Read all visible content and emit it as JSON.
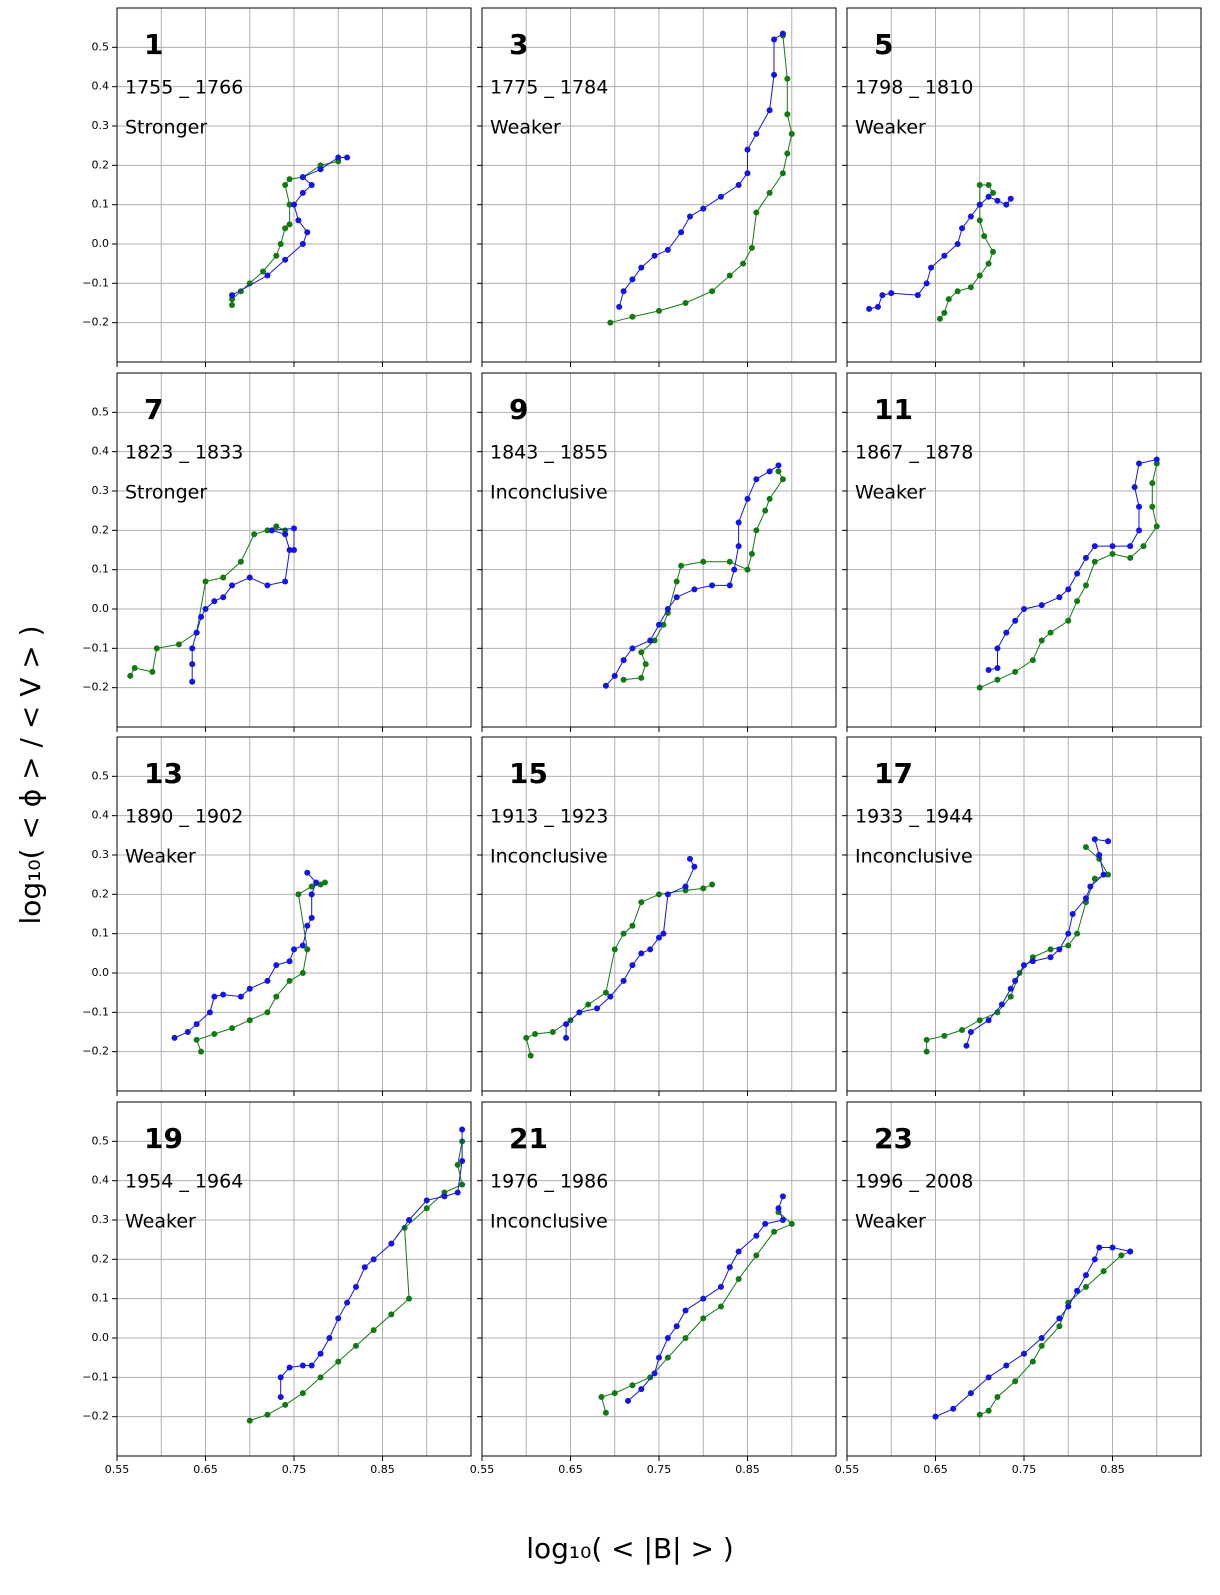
{
  "axes": {
    "xlabel": "log₁₀( < |B| > )",
    "ylabel": "log₁₀( < ϕ > / < V > )",
    "xlim": [
      0.55,
      0.95
    ],
    "ylim": [
      -0.3,
      0.6
    ],
    "xticks": [
      0.55,
      0.65,
      0.75,
      0.85
    ],
    "xgrid": [
      0.6,
      0.7,
      0.8,
      0.9
    ],
    "yticks": [
      {
        "value": -0.2,
        "label": "−0.2"
      },
      {
        "value": -0.1,
        "label": "−0.1"
      },
      {
        "value": 0,
        "label": "0.0"
      },
      0.1,
      0.2,
      0.3,
      0.4,
      0.5
    ],
    "grid": true
  },
  "chart_data": [
    {
      "type": "scatter",
      "title": "1",
      "subtitle": "1755 _ 1766",
      "annotation": "Stronger",
      "series": [
        {
          "color": "#137a13",
          "x": [
            0.68,
            0.68,
            0.69,
            0.7,
            0.715,
            0.73,
            0.735,
            0.74,
            0.745,
            0.745,
            0.74,
            0.745,
            0.76,
            0.78,
            0.8
          ],
          "y": [
            -0.155,
            -0.14,
            -0.12,
            -0.1,
            -0.07,
            -0.03,
            0.0,
            0.04,
            0.05,
            0.1,
            0.15,
            0.165,
            0.17,
            0.2,
            0.21
          ]
        },
        {
          "color": "#1414e6",
          "x": [
            0.68,
            0.72,
            0.74,
            0.76,
            0.765,
            0.755,
            0.75,
            0.76,
            0.77,
            0.76,
            0.78,
            0.8,
            0.81
          ],
          "y": [
            -0.13,
            -0.08,
            -0.04,
            0.0,
            0.03,
            0.06,
            0.1,
            0.13,
            0.15,
            0.17,
            0.19,
            0.22,
            0.22
          ]
        }
      ]
    },
    {
      "type": "scatter",
      "title": "3",
      "subtitle": "1775 _ 1784",
      "annotation": "Weaker",
      "series": [
        {
          "color": "#137a13",
          "x": [
            0.695,
            0.72,
            0.75,
            0.78,
            0.81,
            0.83,
            0.845,
            0.855,
            0.86,
            0.875,
            0.89,
            0.895,
            0.9,
            0.895,
            0.895,
            0.89
          ],
          "y": [
            -0.2,
            -0.185,
            -0.17,
            -0.15,
            -0.12,
            -0.08,
            -0.05,
            -0.01,
            0.08,
            0.13,
            0.18,
            0.23,
            0.28,
            0.33,
            0.42,
            0.53
          ]
        },
        {
          "color": "#1414e6",
          "x": [
            0.705,
            0.71,
            0.72,
            0.73,
            0.745,
            0.76,
            0.775,
            0.785,
            0.8,
            0.82,
            0.84,
            0.85,
            0.85,
            0.86,
            0.875,
            0.88,
            0.88,
            0.89
          ],
          "y": [
            -0.16,
            -0.12,
            -0.09,
            -0.06,
            -0.03,
            -0.015,
            0.03,
            0.07,
            0.09,
            0.12,
            0.15,
            0.18,
            0.24,
            0.28,
            0.34,
            0.43,
            0.52,
            0.535
          ]
        }
      ]
    },
    {
      "type": "scatter",
      "title": "5",
      "subtitle": "1798 _ 1810",
      "annotation": "Weaker",
      "series": [
        {
          "color": "#137a13",
          "x": [
            0.655,
            0.66,
            0.665,
            0.675,
            0.69,
            0.7,
            0.71,
            0.715,
            0.705,
            0.7,
            0.7,
            0.7,
            0.71,
            0.715
          ],
          "y": [
            -0.19,
            -0.175,
            -0.14,
            -0.12,
            -0.11,
            -0.08,
            -0.05,
            -0.02,
            0.02,
            0.06,
            0.1,
            0.15,
            0.15,
            0.13
          ]
        },
        {
          "color": "#1414e6",
          "x": [
            0.575,
            0.585,
            0.59,
            0.6,
            0.63,
            0.64,
            0.645,
            0.66,
            0.675,
            0.68,
            0.69,
            0.7,
            0.71,
            0.72,
            0.73,
            0.735
          ],
          "y": [
            -0.165,
            -0.16,
            -0.13,
            -0.125,
            -0.13,
            -0.1,
            -0.06,
            -0.03,
            0.0,
            0.04,
            0.07,
            0.1,
            0.12,
            0.11,
            0.1,
            0.115
          ]
        }
      ]
    },
    {
      "type": "scatter",
      "title": "7",
      "subtitle": "1823 _ 1833",
      "annotation": "Stronger",
      "series": [
        {
          "color": "#137a13",
          "x": [
            0.565,
            0.57,
            0.59,
            0.595,
            0.62,
            0.64,
            0.65,
            0.67,
            0.69,
            0.705,
            0.72,
            0.73,
            0.74
          ],
          "y": [
            -0.17,
            -0.15,
            -0.16,
            -0.1,
            -0.09,
            -0.06,
            0.07,
            0.08,
            0.12,
            0.19,
            0.2,
            0.21,
            0.2
          ]
        },
        {
          "color": "#1414e6",
          "x": [
            0.635,
            0.635,
            0.635,
            0.64,
            0.645,
            0.65,
            0.66,
            0.67,
            0.68,
            0.7,
            0.72,
            0.74,
            0.745,
            0.74,
            0.725,
            0.75,
            0.75
          ],
          "y": [
            -0.185,
            -0.14,
            -0.1,
            -0.06,
            -0.02,
            0.0,
            0.02,
            0.03,
            0.06,
            0.08,
            0.06,
            0.07,
            0.15,
            0.19,
            0.2,
            0.205,
            0.15
          ]
        }
      ]
    },
    {
      "type": "scatter",
      "title": "9",
      "subtitle": "1843 _ 1855",
      "annotation": "Inconclusive",
      "series": [
        {
          "color": "#137a13",
          "x": [
            0.71,
            0.73,
            0.735,
            0.73,
            0.745,
            0.755,
            0.76,
            0.77,
            0.775,
            0.8,
            0.83,
            0.85,
            0.855,
            0.86,
            0.87,
            0.875,
            0.89,
            0.885
          ],
          "y": [
            -0.18,
            -0.175,
            -0.14,
            -0.11,
            -0.08,
            -0.04,
            -0.01,
            0.07,
            0.11,
            0.12,
            0.12,
            0.1,
            0.14,
            0.2,
            0.25,
            0.28,
            0.33,
            0.35
          ]
        },
        {
          "color": "#1414e6",
          "x": [
            0.69,
            0.7,
            0.71,
            0.72,
            0.74,
            0.75,
            0.76,
            0.77,
            0.79,
            0.81,
            0.83,
            0.835,
            0.84,
            0.84,
            0.85,
            0.86,
            0.875,
            0.885
          ],
          "y": [
            -0.195,
            -0.17,
            -0.13,
            -0.1,
            -0.08,
            -0.04,
            0.0,
            0.03,
            0.05,
            0.06,
            0.06,
            0.1,
            0.16,
            0.22,
            0.28,
            0.33,
            0.35,
            0.365
          ]
        }
      ]
    },
    {
      "type": "scatter",
      "title": "11",
      "subtitle": "1867 _ 1878",
      "annotation": "Weaker",
      "series": [
        {
          "color": "#137a13",
          "x": [
            0.7,
            0.72,
            0.74,
            0.76,
            0.77,
            0.78,
            0.8,
            0.81,
            0.82,
            0.83,
            0.85,
            0.87,
            0.885,
            0.9,
            0.895,
            0.895,
            0.9
          ],
          "y": [
            -0.2,
            -0.18,
            -0.16,
            -0.13,
            -0.08,
            -0.06,
            -0.03,
            0.02,
            0.06,
            0.12,
            0.14,
            0.13,
            0.16,
            0.21,
            0.26,
            0.32,
            0.37
          ]
        },
        {
          "color": "#1414e6",
          "x": [
            0.71,
            0.72,
            0.72,
            0.73,
            0.74,
            0.75,
            0.77,
            0.79,
            0.8,
            0.81,
            0.82,
            0.83,
            0.85,
            0.87,
            0.88,
            0.88,
            0.875,
            0.88,
            0.9
          ],
          "y": [
            -0.155,
            -0.15,
            -0.1,
            -0.06,
            -0.03,
            0.0,
            0.01,
            0.03,
            0.05,
            0.09,
            0.13,
            0.16,
            0.16,
            0.16,
            0.2,
            0.26,
            0.31,
            0.37,
            0.38
          ]
        }
      ]
    },
    {
      "type": "scatter",
      "title": "13",
      "subtitle": "1890 _ 1902",
      "annotation": "Weaker",
      "series": [
        {
          "color": "#137a13",
          "x": [
            0.645,
            0.64,
            0.66,
            0.68,
            0.7,
            0.72,
            0.73,
            0.745,
            0.76,
            0.765,
            0.755,
            0.77,
            0.78,
            0.785
          ],
          "y": [
            -0.2,
            -0.17,
            -0.155,
            -0.14,
            -0.12,
            -0.1,
            -0.06,
            -0.02,
            0.0,
            0.06,
            0.2,
            0.22,
            0.225,
            0.23
          ]
        },
        {
          "color": "#1414e6",
          "x": [
            0.615,
            0.63,
            0.64,
            0.655,
            0.66,
            0.67,
            0.69,
            0.7,
            0.72,
            0.73,
            0.745,
            0.75,
            0.76,
            0.765,
            0.77,
            0.77,
            0.775,
            0.765
          ],
          "y": [
            -0.165,
            -0.15,
            -0.13,
            -0.1,
            -0.06,
            -0.055,
            -0.06,
            -0.04,
            -0.02,
            0.02,
            0.03,
            0.06,
            0.07,
            0.12,
            0.14,
            0.2,
            0.23,
            0.255
          ]
        }
      ]
    },
    {
      "type": "scatter",
      "title": "15",
      "subtitle": "1913 _ 1923",
      "annotation": "Inconclusive",
      "series": [
        {
          "color": "#137a13",
          "x": [
            0.605,
            0.6,
            0.61,
            0.63,
            0.65,
            0.67,
            0.69,
            0.7,
            0.71,
            0.72,
            0.73,
            0.75,
            0.78,
            0.8,
            0.81
          ],
          "y": [
            -0.21,
            -0.165,
            -0.155,
            -0.15,
            -0.12,
            -0.08,
            -0.05,
            0.06,
            0.1,
            0.12,
            0.18,
            0.2,
            0.21,
            0.215,
            0.225
          ]
        },
        {
          "color": "#1414e6",
          "x": [
            0.645,
            0.645,
            0.66,
            0.68,
            0.695,
            0.71,
            0.72,
            0.73,
            0.74,
            0.75,
            0.755,
            0.76,
            0.78,
            0.79,
            0.785
          ],
          "y": [
            -0.165,
            -0.13,
            -0.1,
            -0.09,
            -0.06,
            -0.02,
            0.02,
            0.05,
            0.06,
            0.09,
            0.1,
            0.2,
            0.22,
            0.27,
            0.29
          ]
        }
      ]
    },
    {
      "type": "scatter",
      "title": "17",
      "subtitle": "1933 _ 1944",
      "annotation": "Inconclusive",
      "series": [
        {
          "color": "#137a13",
          "x": [
            0.64,
            0.64,
            0.66,
            0.68,
            0.7,
            0.72,
            0.735,
            0.745,
            0.76,
            0.78,
            0.8,
            0.81,
            0.82,
            0.83,
            0.845,
            0.835,
            0.82
          ],
          "y": [
            -0.2,
            -0.17,
            -0.16,
            -0.145,
            -0.12,
            -0.1,
            -0.06,
            0.0,
            0.04,
            0.06,
            0.07,
            0.1,
            0.18,
            0.24,
            0.25,
            0.29,
            0.32
          ]
        },
        {
          "color": "#1414e6",
          "x": [
            0.685,
            0.69,
            0.71,
            0.725,
            0.735,
            0.74,
            0.75,
            0.76,
            0.78,
            0.79,
            0.8,
            0.805,
            0.82,
            0.825,
            0.84,
            0.835,
            0.83,
            0.845
          ],
          "y": [
            -0.185,
            -0.15,
            -0.12,
            -0.08,
            -0.04,
            -0.02,
            0.02,
            0.03,
            0.04,
            0.06,
            0.1,
            0.15,
            0.19,
            0.22,
            0.25,
            0.3,
            0.34,
            0.335
          ]
        }
      ]
    },
    {
      "type": "scatter",
      "title": "19",
      "subtitle": "1954 _ 1964",
      "annotation": "Weaker",
      "series": [
        {
          "color": "#137a13",
          "x": [
            0.7,
            0.72,
            0.74,
            0.76,
            0.78,
            0.8,
            0.82,
            0.84,
            0.86,
            0.88,
            0.875,
            0.9,
            0.92,
            0.94,
            0.935,
            0.94
          ],
          "y": [
            -0.21,
            -0.195,
            -0.17,
            -0.14,
            -0.1,
            -0.06,
            -0.02,
            0.02,
            0.06,
            0.1,
            0.28,
            0.33,
            0.37,
            0.39,
            0.44,
            0.5
          ]
        },
        {
          "color": "#1414e6",
          "x": [
            0.735,
            0.735,
            0.745,
            0.76,
            0.77,
            0.78,
            0.79,
            0.8,
            0.81,
            0.82,
            0.83,
            0.84,
            0.86,
            0.88,
            0.9,
            0.92,
            0.935,
            0.94,
            0.94
          ],
          "y": [
            -0.15,
            -0.1,
            -0.075,
            -0.07,
            -0.07,
            -0.04,
            0.0,
            0.05,
            0.09,
            0.13,
            0.18,
            0.2,
            0.24,
            0.3,
            0.35,
            0.36,
            0.37,
            0.45,
            0.53
          ]
        }
      ]
    },
    {
      "type": "scatter",
      "title": "21",
      "subtitle": "1976 _ 1986",
      "annotation": "Inconclusive",
      "series": [
        {
          "color": "#137a13",
          "x": [
            0.69,
            0.685,
            0.7,
            0.72,
            0.74,
            0.76,
            0.78,
            0.8,
            0.82,
            0.84,
            0.86,
            0.88,
            0.9,
            0.885
          ],
          "y": [
            -0.19,
            -0.15,
            -0.14,
            -0.12,
            -0.1,
            -0.05,
            0.0,
            0.05,
            0.08,
            0.15,
            0.21,
            0.27,
            0.29,
            0.32
          ]
        },
        {
          "color": "#1414e6",
          "x": [
            0.715,
            0.73,
            0.745,
            0.75,
            0.76,
            0.77,
            0.78,
            0.8,
            0.82,
            0.83,
            0.84,
            0.86,
            0.87,
            0.89,
            0.885,
            0.89
          ],
          "y": [
            -0.16,
            -0.13,
            -0.09,
            -0.05,
            0.0,
            0.03,
            0.07,
            0.1,
            0.13,
            0.18,
            0.22,
            0.26,
            0.29,
            0.3,
            0.33,
            0.36
          ]
        }
      ]
    },
    {
      "type": "scatter",
      "title": "23",
      "subtitle": "1996 _ 2008",
      "annotation": "Weaker",
      "series": [
        {
          "color": "#137a13",
          "x": [
            0.7,
            0.71,
            0.72,
            0.74,
            0.76,
            0.77,
            0.79,
            0.8,
            0.82,
            0.84,
            0.86,
            0.87
          ],
          "y": [
            -0.195,
            -0.185,
            -0.15,
            -0.11,
            -0.06,
            -0.02,
            0.03,
            0.09,
            0.13,
            0.17,
            0.21,
            0.22
          ]
        },
        {
          "color": "#1414e6",
          "x": [
            0.65,
            0.67,
            0.69,
            0.71,
            0.73,
            0.75,
            0.77,
            0.79,
            0.8,
            0.81,
            0.82,
            0.83,
            0.835,
            0.85,
            0.87
          ],
          "y": [
            -0.2,
            -0.18,
            -0.14,
            -0.1,
            -0.07,
            -0.04,
            0.0,
            0.05,
            0.08,
            0.12,
            0.16,
            0.2,
            0.23,
            0.23,
            0.22
          ]
        }
      ]
    }
  ]
}
